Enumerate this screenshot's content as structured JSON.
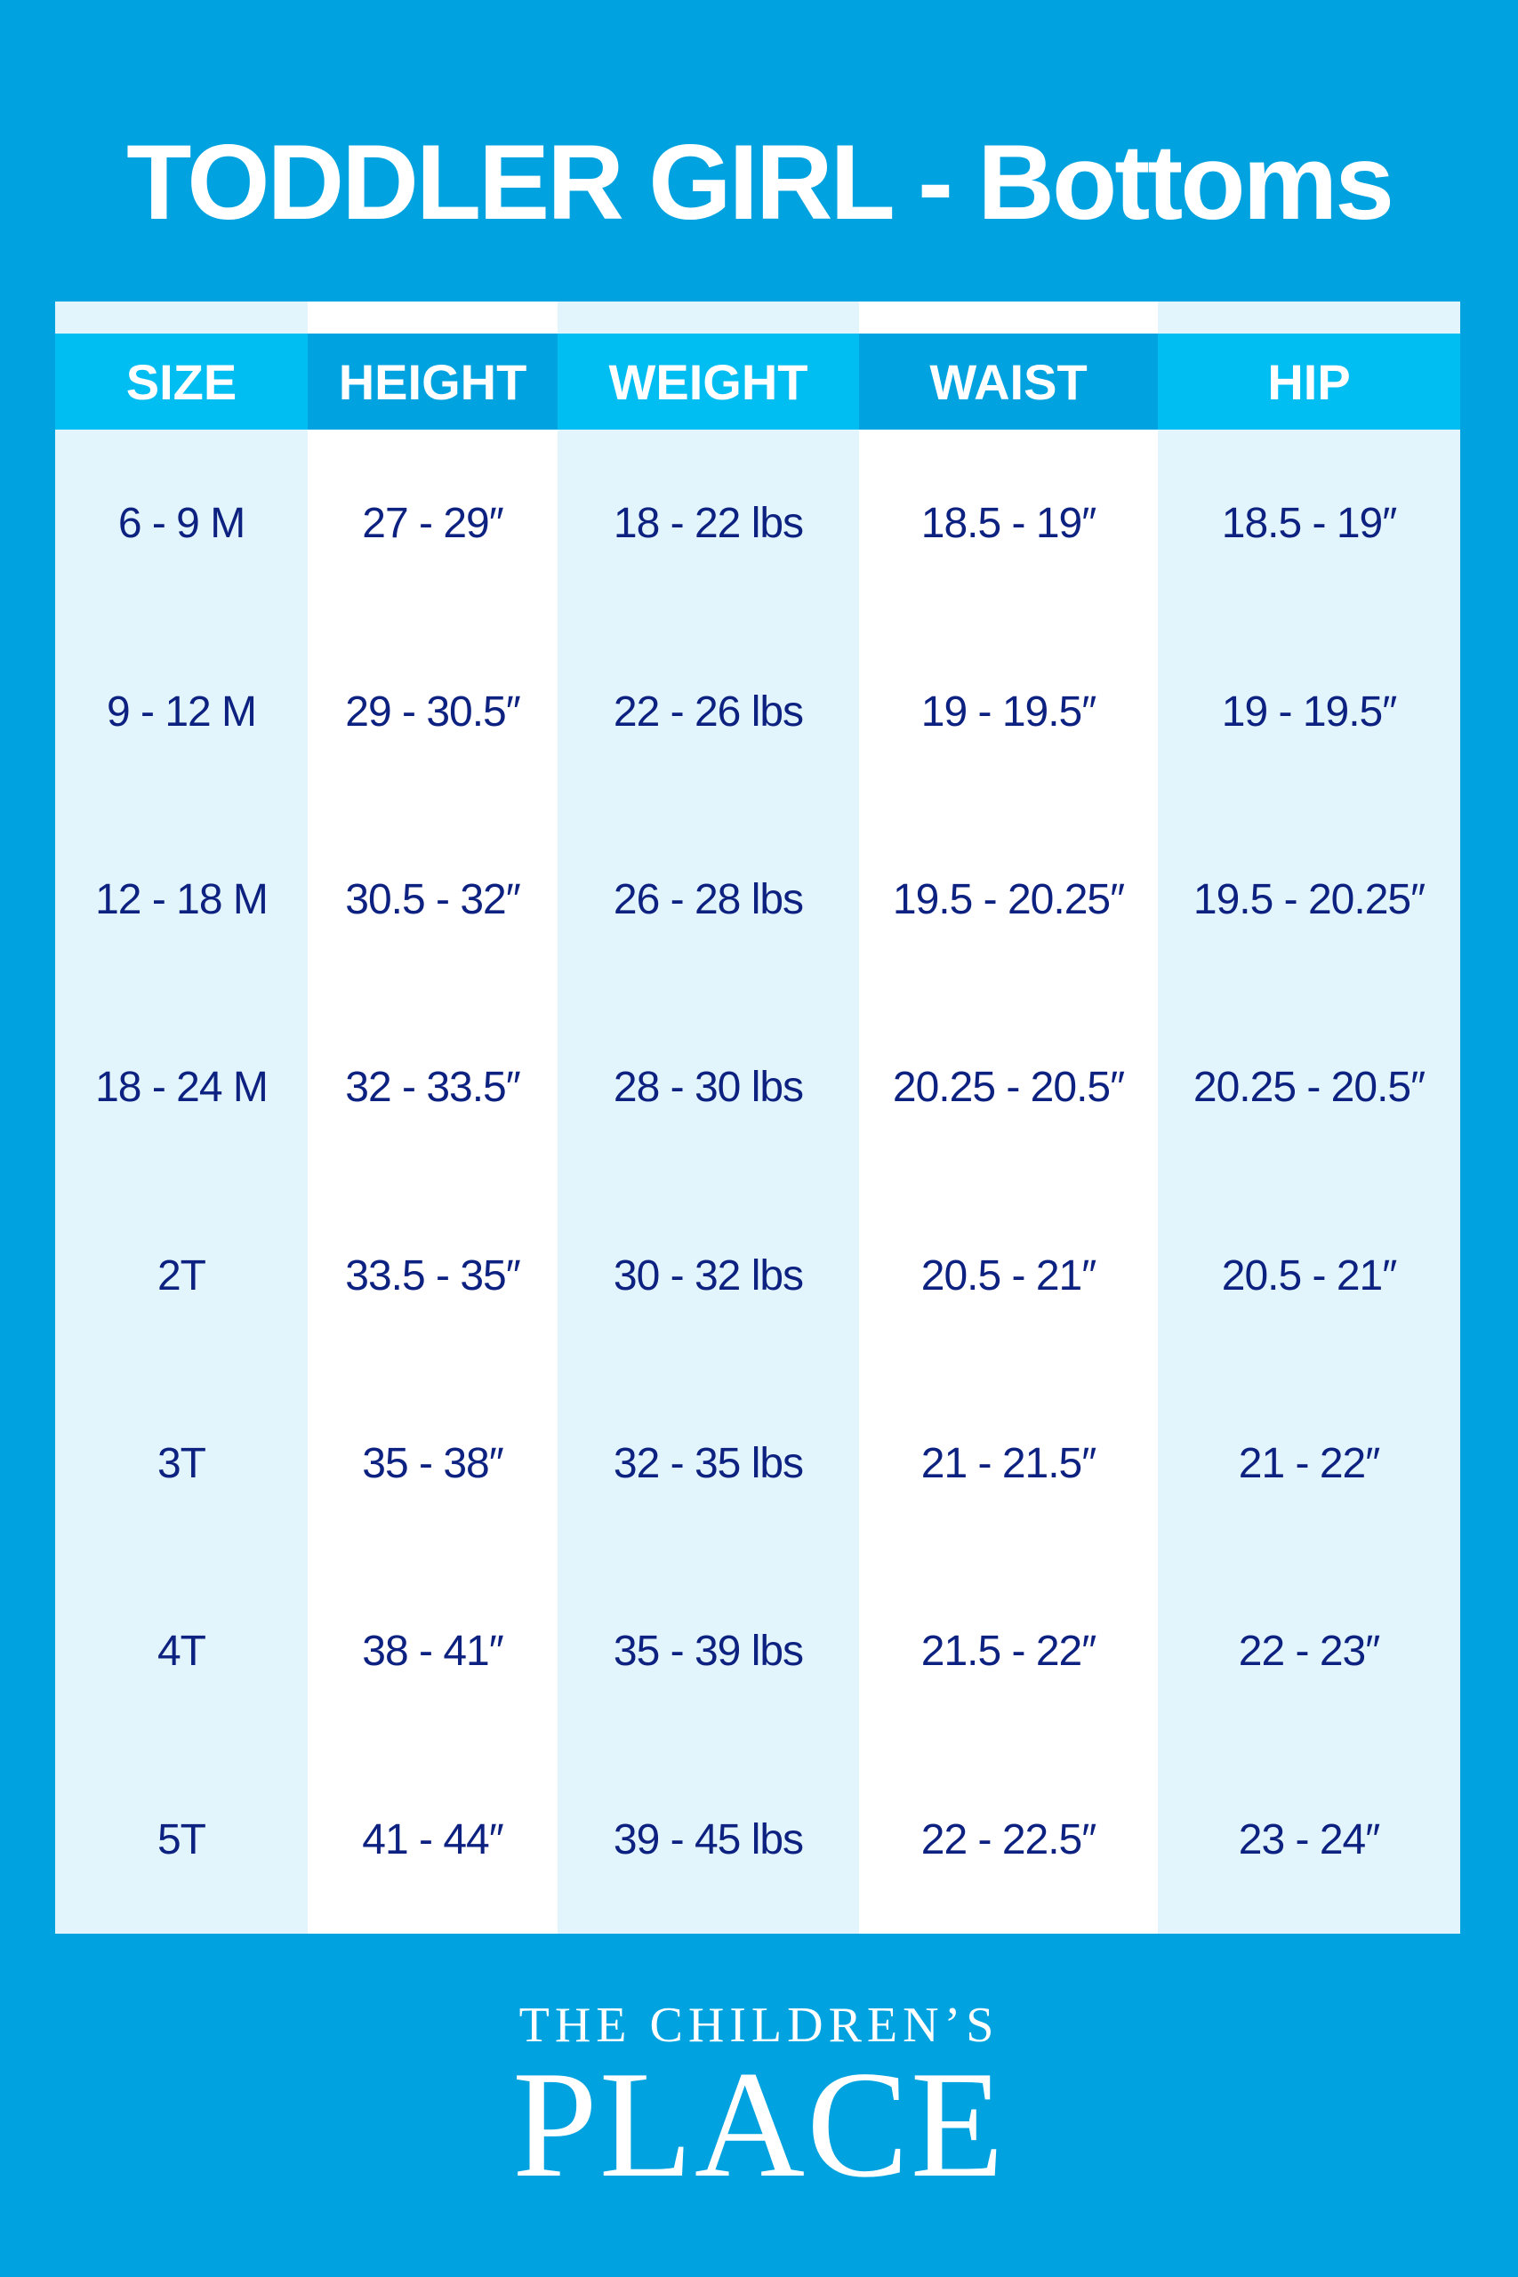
{
  "title": "TODDLER GIRL - Bottoms",
  "colors": {
    "background": "#00a3e0",
    "header_light": "#00bdf2",
    "header_dark": "#00a3e0",
    "cell_light": "#e3f5fc",
    "text": "#0d2280"
  },
  "table": {
    "headers": [
      "SIZE",
      "HEIGHT",
      "WEIGHT",
      "WAIST",
      "HIP"
    ],
    "columns": [
      [
        "6 - 9 M",
        "9 - 12 M",
        "12  - 18 M",
        "18 - 24 M",
        "2T",
        "3T",
        "4T",
        "5T"
      ],
      [
        "27 - 29″",
        "29 - 30.5″",
        "30.5 - 32″",
        "32 - 33.5″",
        "33.5 - 35″",
        "35 - 38″",
        "38 - 41″",
        "41 - 44″"
      ],
      [
        "18 - 22 lbs",
        "22 - 26 lbs",
        "26 - 28 lbs",
        "28 - 30 lbs",
        "30 - 32 lbs",
        "32 - 35 lbs",
        "35 - 39 lbs",
        "39 - 45 lbs"
      ],
      [
        "18.5 - 19″",
        "19 - 19.5″",
        "19.5 - 20.25″",
        "20.25 - 20.5″",
        "20.5 - 21″",
        "21 - 21.5″",
        "21.5 - 22″",
        "22 - 22.5″"
      ],
      [
        "18.5 - 19″",
        "19 - 19.5″",
        "19.5 - 20.25″",
        "20.25 - 20.5″",
        "20.5 - 21″",
        "21 - 22″",
        "22 - 23″",
        "23 - 24″"
      ]
    ]
  },
  "logo": {
    "line1": "THE CHILDREN’S",
    "line2": "PLACE"
  }
}
